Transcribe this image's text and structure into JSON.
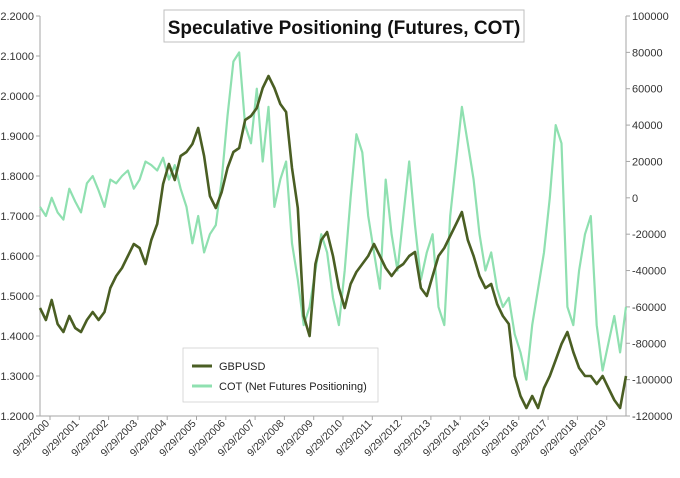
{
  "chart_data": {
    "type": "line",
    "title": "Speculative Positioning (Futures, COT)",
    "x_tick_labels": [
      "9/29/2000",
      "9/29/2001",
      "9/29/2002",
      "9/29/2003",
      "9/29/2004",
      "9/29/2005",
      "9/29/2006",
      "9/29/2007",
      "9/29/2008",
      "9/29/2009",
      "9/29/2010",
      "9/29/2011",
      "9/29/2012",
      "9/29/2013",
      "9/29/2014",
      "9/29/2015",
      "9/29/2016",
      "9/29/2017",
      "9/29/2018",
      "9/29/2019"
    ],
    "y_left": {
      "ticks": [
        "1.2000",
        "1.3000",
        "1.4000",
        "1.5000",
        "1.6000",
        "1.7000",
        "1.8000",
        "1.9000",
        "2.0000",
        "2.1000",
        "2.2000"
      ],
      "ylim": [
        1.2,
        2.2
      ]
    },
    "y_right": {
      "ticks": [
        "-120000",
        "-100000",
        "-80000",
        "-60000",
        "-40000",
        "-20000",
        "0",
        "20000",
        "40000",
        "60000",
        "80000",
        "100000"
      ],
      "ylim": [
        -120000,
        100000
      ]
    },
    "grid": false,
    "legend_position": "bottom-left",
    "series": [
      {
        "name": "GBPUSD",
        "axis": "left",
        "color": "#4a5e23",
        "x": [
          2000.0,
          2000.2,
          2000.4,
          2000.6,
          2000.8,
          2001.0,
          2001.2,
          2001.4,
          2001.6,
          2001.8,
          2002.0,
          2002.2,
          2002.4,
          2002.6,
          2002.8,
          2003.0,
          2003.2,
          2003.4,
          2003.6,
          2003.8,
          2004.0,
          2004.2,
          2004.4,
          2004.6,
          2004.8,
          2005.0,
          2005.2,
          2005.4,
          2005.6,
          2005.8,
          2006.0,
          2006.2,
          2006.4,
          2006.6,
          2006.8,
          2007.0,
          2007.2,
          2007.4,
          2007.6,
          2007.8,
          2008.0,
          2008.2,
          2008.4,
          2008.6,
          2008.8,
          2009.0,
          2009.2,
          2009.4,
          2009.6,
          2009.8,
          2010.0,
          2010.2,
          2010.4,
          2010.6,
          2010.8,
          2011.0,
          2011.2,
          2011.4,
          2011.6,
          2011.8,
          2012.0,
          2012.2,
          2012.4,
          2012.6,
          2012.8,
          2013.0,
          2013.2,
          2013.4,
          2013.6,
          2013.8,
          2014.0,
          2014.2,
          2014.4,
          2014.6,
          2014.8,
          2015.0,
          2015.2,
          2015.4,
          2015.6,
          2015.8,
          2016.0,
          2016.2,
          2016.4,
          2016.6,
          2016.8,
          2017.0,
          2017.2,
          2017.4,
          2017.6,
          2017.8,
          2018.0,
          2018.2,
          2018.4,
          2018.6,
          2018.8,
          2019.0,
          2019.2,
          2019.4,
          2019.6,
          2019.8,
          2020.0
        ],
        "values": [
          1.47,
          1.44,
          1.49,
          1.43,
          1.41,
          1.45,
          1.42,
          1.41,
          1.44,
          1.46,
          1.44,
          1.46,
          1.52,
          1.55,
          1.57,
          1.6,
          1.63,
          1.62,
          1.58,
          1.64,
          1.68,
          1.78,
          1.83,
          1.79,
          1.85,
          1.86,
          1.88,
          1.92,
          1.85,
          1.75,
          1.72,
          1.76,
          1.82,
          1.86,
          1.87,
          1.94,
          1.95,
          1.97,
          2.02,
          2.05,
          2.02,
          1.98,
          1.96,
          1.82,
          1.72,
          1.45,
          1.4,
          1.58,
          1.64,
          1.66,
          1.6,
          1.52,
          1.47,
          1.53,
          1.56,
          1.58,
          1.6,
          1.63,
          1.6,
          1.57,
          1.55,
          1.57,
          1.58,
          1.6,
          1.61,
          1.52,
          1.5,
          1.55,
          1.6,
          1.62,
          1.65,
          1.68,
          1.71,
          1.64,
          1.6,
          1.55,
          1.52,
          1.53,
          1.48,
          1.45,
          1.43,
          1.3,
          1.25,
          1.22,
          1.25,
          1.22,
          1.27,
          1.3,
          1.34,
          1.38,
          1.41,
          1.36,
          1.32,
          1.3,
          1.3,
          1.28,
          1.3,
          1.27,
          1.24,
          1.22,
          1.3
        ]
      },
      {
        "name": "COT (Net Futures Positioning)",
        "axis": "right",
        "color": "#8fe0b0",
        "x": [
          2000.0,
          2000.2,
          2000.4,
          2000.6,
          2000.8,
          2001.0,
          2001.2,
          2001.4,
          2001.6,
          2001.8,
          2002.0,
          2002.2,
          2002.4,
          2002.6,
          2002.8,
          2003.0,
          2003.2,
          2003.4,
          2003.6,
          2003.8,
          2004.0,
          2004.2,
          2004.4,
          2004.6,
          2004.8,
          2005.0,
          2005.2,
          2005.4,
          2005.6,
          2005.8,
          2006.0,
          2006.2,
          2006.4,
          2006.6,
          2006.8,
          2007.0,
          2007.2,
          2007.4,
          2007.6,
          2007.8,
          2008.0,
          2008.2,
          2008.4,
          2008.6,
          2008.8,
          2009.0,
          2009.2,
          2009.4,
          2009.6,
          2009.8,
          2010.0,
          2010.2,
          2010.4,
          2010.6,
          2010.8,
          2011.0,
          2011.2,
          2011.4,
          2011.6,
          2011.8,
          2012.0,
          2012.2,
          2012.4,
          2012.6,
          2012.8,
          2013.0,
          2013.2,
          2013.4,
          2013.6,
          2013.8,
          2014.0,
          2014.2,
          2014.4,
          2014.6,
          2014.8,
          2015.0,
          2015.2,
          2015.4,
          2015.6,
          2015.8,
          2016.0,
          2016.2,
          2016.4,
          2016.6,
          2016.8,
          2017.0,
          2017.2,
          2017.4,
          2017.6,
          2017.8,
          2018.0,
          2018.2,
          2018.4,
          2018.6,
          2018.8,
          2019.0,
          2019.2,
          2019.4,
          2019.6,
          2019.8,
          2020.0
        ],
        "values": [
          -5000,
          -10000,
          0,
          -8000,
          -12000,
          5000,
          -2000,
          -8000,
          8000,
          12000,
          4000,
          -5000,
          10000,
          8000,
          12000,
          15000,
          5000,
          10000,
          20000,
          18000,
          15000,
          22000,
          10000,
          18000,
          5000,
          -5000,
          -25000,
          -10000,
          -30000,
          -20000,
          -15000,
          10000,
          45000,
          75000,
          80000,
          40000,
          30000,
          60000,
          20000,
          50000,
          -5000,
          10000,
          20000,
          -25000,
          -45000,
          -70000,
          -60000,
          -40000,
          -20000,
          -30000,
          -55000,
          -70000,
          -40000,
          0,
          35000,
          25000,
          -10000,
          -30000,
          -50000,
          10000,
          -20000,
          -40000,
          -10000,
          20000,
          -15000,
          -45000,
          -30000,
          -20000,
          -60000,
          -70000,
          -10000,
          20000,
          50000,
          30000,
          10000,
          -20000,
          -40000,
          -30000,
          -50000,
          -60000,
          -55000,
          -75000,
          -85000,
          -100000,
          -70000,
          -50000,
          -30000,
          0,
          40000,
          30000,
          -60000,
          -70000,
          -40000,
          -20000,
          -10000,
          -70000,
          -95000,
          -80000,
          -65000,
          -85000,
          -60000
        ]
      }
    ]
  }
}
